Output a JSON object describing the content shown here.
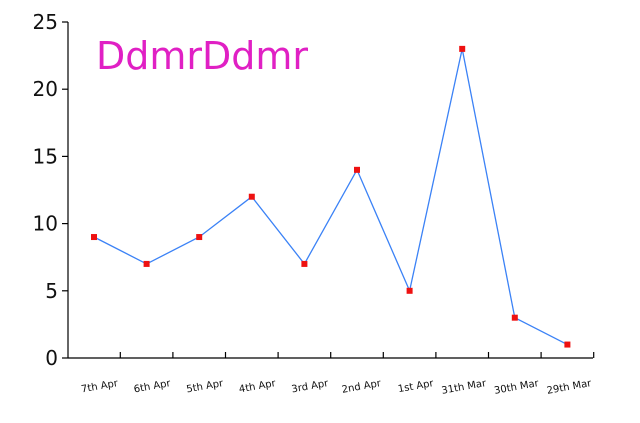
{
  "chart_data": {
    "type": "line",
    "title": "DdmrDdmr",
    "xlabel": "",
    "ylabel": "",
    "categories": [
      "7th Apr",
      "6th Apr",
      "5th Apr",
      "4th Apr",
      "3rd Apr",
      "2nd Apr",
      "1st Apr",
      "31th Mar",
      "30th Mar",
      "29th Mar"
    ],
    "values": [
      9,
      7,
      9,
      12,
      7,
      14,
      5,
      23,
      3,
      1
    ],
    "ylim": [
      0,
      25
    ],
    "yticks": [
      0,
      5,
      10,
      15,
      20,
      25
    ],
    "grid": false,
    "legend": "none",
    "colors": {
      "line": "#3b82f6",
      "marker": "#ee1111",
      "axis": "#000000",
      "title": "#e020c4"
    }
  }
}
